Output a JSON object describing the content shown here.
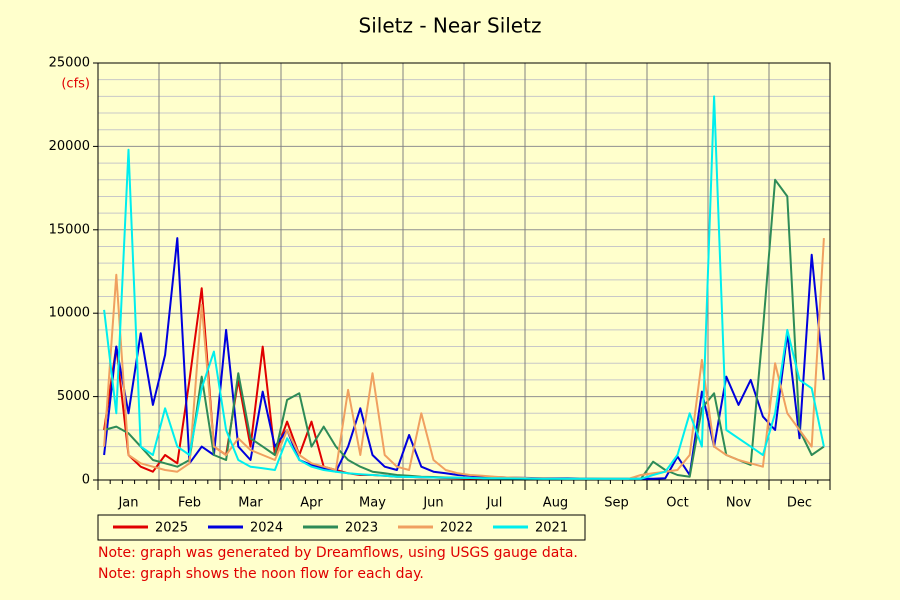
{
  "chart_data": {
    "type": "line",
    "title": "Siletz - Near Siletz",
    "y_unit": "(cfs)",
    "categories": [
      null,
      null,
      "Jan",
      null,
      null,
      null,
      null,
      "Feb",
      null,
      null,
      null,
      null,
      "Mar",
      null,
      null,
      null,
      null,
      "Apr",
      null,
      null,
      null,
      null,
      "May",
      null,
      null,
      null,
      null,
      "Jun",
      null,
      null,
      null,
      null,
      "Jul",
      null,
      null,
      null,
      null,
      "Aug",
      null,
      null,
      null,
      null,
      "Sep",
      null,
      null,
      null,
      null,
      "Oct",
      null,
      null,
      null,
      null,
      "Nov",
      null,
      null,
      null,
      null,
      "Dec",
      null,
      null
    ],
    "ylim": [
      0,
      25000
    ],
    "yticks": [
      0,
      5000,
      10000,
      15000,
      20000,
      25000
    ],
    "grid": true,
    "legend": "bottom",
    "series": [
      {
        "name": "2025",
        "color": "#e00000",
        "values": [
          3000,
          8000,
          1500,
          800,
          500,
          1500,
          1000,
          6000,
          11500,
          2000,
          1500,
          6000,
          2000,
          8000,
          1500,
          3500,
          1500,
          3500,
          800,
          600,
          400,
          300,
          300,
          250,
          200,
          200,
          150,
          150,
          120,
          100,
          90,
          80,
          null,
          null,
          null,
          null,
          null,
          null,
          null,
          null,
          null,
          null,
          null,
          null,
          null,
          null,
          null,
          null,
          null,
          null,
          null,
          null,
          null,
          null,
          null,
          null,
          null,
          null,
          null,
          null
        ]
      },
      {
        "name": "2024",
        "color": "#0000dd",
        "values": [
          1500,
          8000,
          4000,
          8800,
          4500,
          7500,
          14500,
          1000,
          2000,
          1500,
          9000,
          2000,
          1200,
          5300,
          2000,
          3000,
          1200,
          900,
          700,
          500,
          2000,
          4300,
          1500,
          800,
          600,
          2700,
          800,
          500,
          400,
          300,
          250,
          200,
          180,
          150,
          130,
          120,
          110,
          100,
          100,
          90,
          90,
          80,
          80,
          80,
          80,
          80,
          100,
          1400,
          300,
          5300,
          2000,
          6200,
          4500,
          6000,
          3800,
          3000,
          8800,
          2500,
          13500,
          6000
        ]
      },
      {
        "name": "2023",
        "color": "#2e8b57",
        "values": [
          3000,
          3200,
          2800,
          2000,
          1200,
          1000,
          800,
          1200,
          6200,
          1500,
          1200,
          6400,
          2500,
          2000,
          1500,
          4800,
          5200,
          2000,
          3200,
          2000,
          1200,
          800,
          500,
          400,
          300,
          250,
          200,
          180,
          150,
          130,
          120,
          110,
          100,
          90,
          90,
          85,
          80,
          80,
          75,
          70,
          70,
          70,
          65,
          65,
          70,
          1100,
          600,
          300,
          200,
          4300,
          5200,
          1500,
          1200,
          900,
          9000,
          18000,
          17000,
          3000,
          1500,
          2000
        ]
      },
      {
        "name": "2022",
        "color": "#f0a060",
        "values": [
          2000,
          12300,
          1500,
          1000,
          800,
          600,
          500,
          1000,
          10500,
          2000,
          1500,
          2500,
          1800,
          1500,
          1200,
          3000,
          1500,
          1000,
          800,
          600,
          5400,
          1500,
          6400,
          1500,
          800,
          600,
          4000,
          1200,
          600,
          400,
          300,
          250,
          200,
          150,
          130,
          110,
          100,
          90,
          80,
          80,
          70,
          70,
          70,
          80,
          300,
          400,
          500,
          600,
          1500,
          7200,
          2000,
          1500,
          1200,
          1000,
          800,
          7000,
          4000,
          3000,
          2000,
          14500
        ]
      },
      {
        "name": "2021",
        "color": "#00eeee",
        "values": [
          10200,
          4000,
          19800,
          2000,
          1500,
          4300,
          2000,
          1500,
          5500,
          7700,
          3000,
          1200,
          800,
          700,
          600,
          2500,
          1200,
          800,
          600,
          500,
          400,
          350,
          300,
          250,
          200,
          180,
          160,
          150,
          140,
          130,
          120,
          110,
          100,
          95,
          90,
          85,
          80,
          80,
          75,
          70,
          70,
          70,
          70,
          70,
          70,
          300,
          500,
          1500,
          4000,
          2000,
          23000,
          3000,
          2500,
          2000,
          1500,
          4000,
          9000,
          6000,
          5500,
          2000
        ]
      }
    ],
    "notes": [
      "Note: graph was generated by Dreamflows, using USGS gauge data.",
      "Note: graph shows the noon flow for each day."
    ]
  }
}
